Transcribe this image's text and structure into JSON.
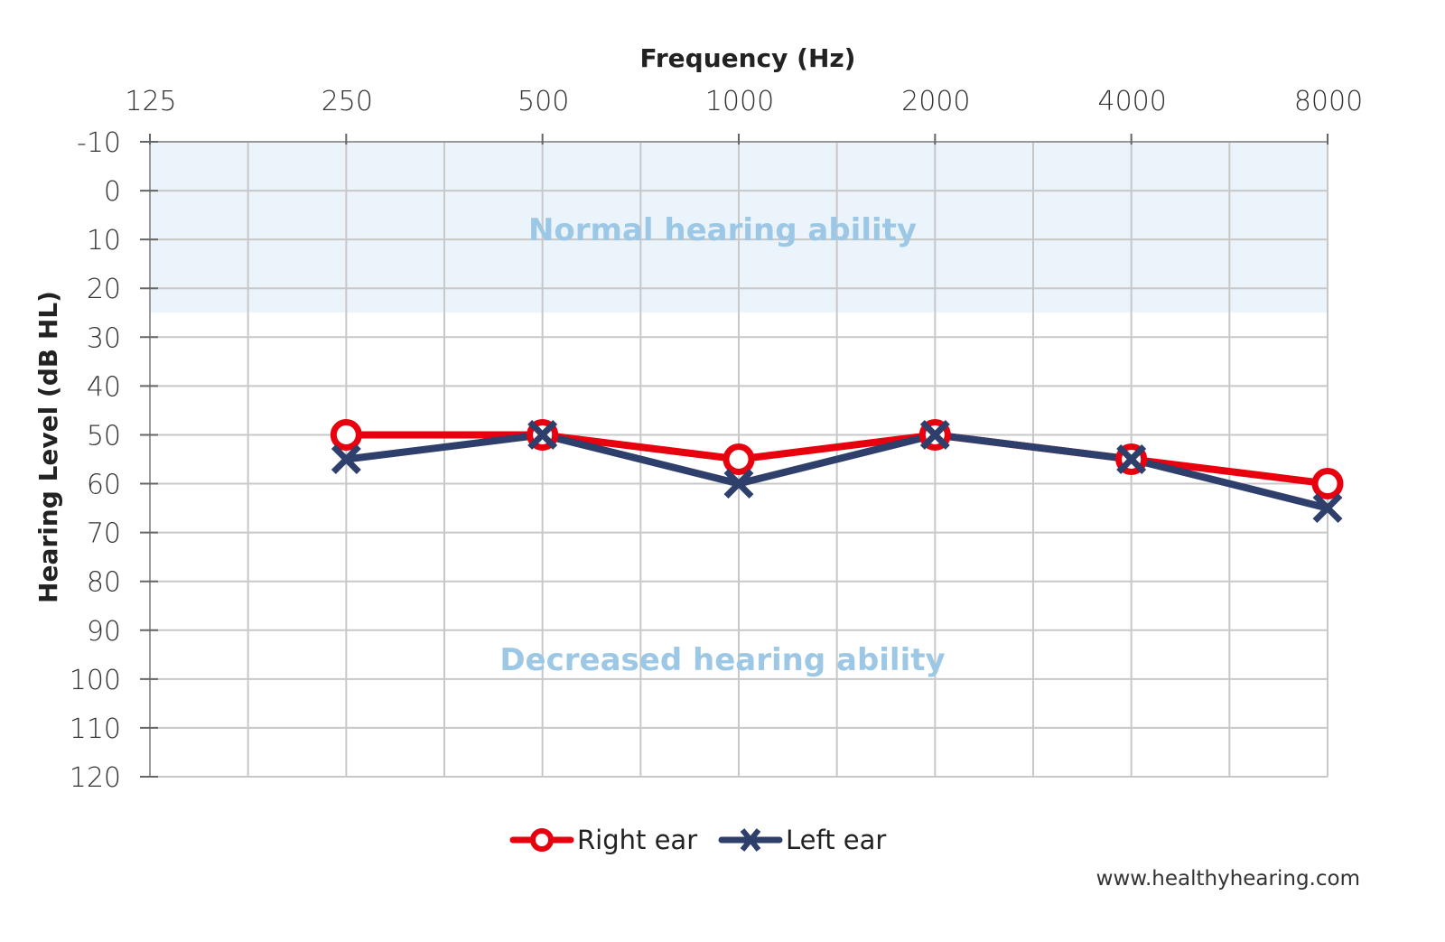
{
  "chart_data": {
    "type": "line",
    "title": "",
    "xlabel": "Frequency (Hz)",
    "ylabel": "Hearing Level (dB HL)",
    "x_ticks": [
      "125",
      "250",
      "500",
      "1000",
      "2000",
      "4000",
      "8000"
    ],
    "x_scale": "log2",
    "y_ticks": [
      "-10",
      "0",
      "10",
      "20",
      "30",
      "40",
      "50",
      "60",
      "70",
      "80",
      "90",
      "100",
      "110",
      "120"
    ],
    "ylim": [
      -10,
      120
    ],
    "y_inverted": true,
    "grid": true,
    "x": [
      250,
      500,
      1000,
      2000,
      4000,
      8000
    ],
    "series": [
      {
        "name": "Right ear",
        "color": "#e8000f",
        "marker": "circle",
        "values": [
          50,
          50,
          55,
          50,
          55,
          60
        ]
      },
      {
        "name": "Left ear",
        "color": "#2e3f6b",
        "marker": "x",
        "values": [
          55,
          50,
          60,
          50,
          55,
          65
        ]
      }
    ],
    "bands": [
      {
        "label": "Normal hearing ability",
        "from": -10,
        "to": 25,
        "color": "#ebf3fb"
      },
      {
        "label": "Decreased hearing ability",
        "from": 25,
        "to": 120,
        "color": "#ffffff"
      }
    ],
    "legend_position": "bottom-center",
    "credit": "www.healthyhearing.com"
  }
}
